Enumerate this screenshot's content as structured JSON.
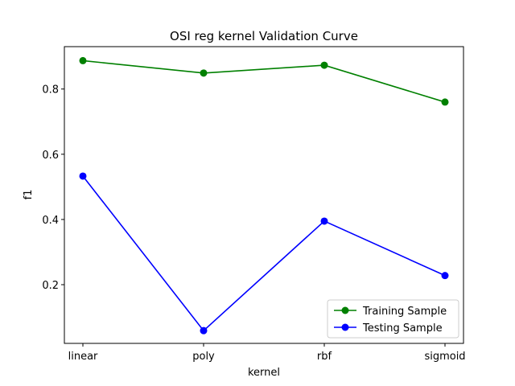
{
  "chart_data": {
    "type": "line",
    "title": "OSI reg kernel Validation Curve",
    "xlabel": "kernel",
    "ylabel": "f1",
    "categories": [
      "linear",
      "poly",
      "rbf",
      "sigmoid"
    ],
    "yticks": [
      "0.2",
      "0.4",
      "0.6",
      "0.8"
    ],
    "ylim": [
      0.02,
      0.93
    ],
    "grid": false,
    "legend_position": "lower right",
    "series": [
      {
        "name": "Training Sample",
        "color": "#008000",
        "values": [
          0.887,
          0.849,
          0.873,
          0.76
        ]
      },
      {
        "name": "Testing Sample",
        "color": "#0000ff",
        "values": [
          0.533,
          0.059,
          0.395,
          0.228
        ]
      }
    ]
  }
}
